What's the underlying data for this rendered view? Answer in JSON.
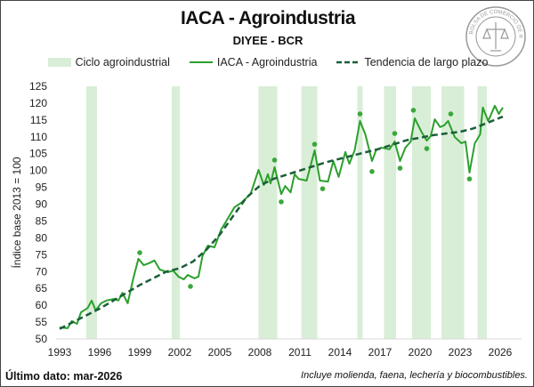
{
  "header": {
    "title": "IACA - Agroindustria",
    "subtitle": "DIYEE - BCR",
    "logo_text": "BOLSA DE COMERCIO DE ROSARIO"
  },
  "footer": {
    "last_data": "Último dato: mar-2026",
    "note": "Incluye molienda, faena, lechería y biocombustibles."
  },
  "colors": {
    "series": "#2ca02c",
    "trend": "#1a5e3a",
    "band": "#d9eed7",
    "dots": "#3aa83a"
  },
  "chart_data": {
    "type": "line",
    "title": "IACA - Agroindustria",
    "subtitle": "DIYEE - BCR",
    "xlabel": "",
    "ylabel": "Índice base 2013 = 100",
    "xlim": [
      1993,
      2027.5
    ],
    "ylim": [
      50,
      125
    ],
    "x_ticks": [
      "1993",
      "1996",
      "1999",
      "2002",
      "2005",
      "2008",
      "2011",
      "2014",
      "2017",
      "2020",
      "2023",
      "2026"
    ],
    "y_ticks": [
      "50",
      "55",
      "60",
      "65",
      "70",
      "75",
      "80",
      "85",
      "90",
      "95",
      "100",
      "105",
      "110",
      "115",
      "120",
      "125"
    ],
    "grid": false,
    "legend_position": "top",
    "legend": [
      "Ciclo agroindustrial",
      "IACA - Agroindustria",
      "Tendencia de largo plazo"
    ],
    "bands": [
      [
        1995.0,
        1995.8
      ],
      [
        2001.4,
        2002.0
      ],
      [
        2007.9,
        2009.3
      ],
      [
        2011.1,
        2012.3
      ],
      [
        2015.3,
        2015.7
      ],
      [
        2017.3,
        2018.2
      ],
      [
        2019.4,
        2020.8
      ],
      [
        2021.6,
        2023.3
      ],
      [
        2024.3,
        2025.0
      ]
    ],
    "series": [
      {
        "name": "IACA - Agroindustria",
        "x": [
          1993,
          1993.6,
          1993.9,
          1994.3,
          1994.6,
          1995.1,
          1995.4,
          1995.7,
          1996.1,
          1996.5,
          1997.1,
          1997.4,
          1997.7,
          1998.1,
          1998.5,
          1998.9,
          1999.3,
          1999.7,
          2000.1,
          2000.5,
          2001.1,
          2001.5,
          2001.9,
          2002.3,
          2002.6,
          2003.1,
          2003.4,
          2003.7,
          2004.1,
          2004.6,
          2005.1,
          2005.5,
          2006.1,
          2006.6,
          2007.3,
          2007.9,
          2008.3,
          2008.6,
          2008.8,
          2009.1,
          2009.6,
          2009.9,
          2010.3,
          2010.6,
          2010.9,
          2011.5,
          2012.1,
          2012.5,
          2013.1,
          2013.5,
          2013.9,
          2014.4,
          2014.7,
          2015.1,
          2015.5,
          2015.9,
          2016.4,
          2016.7,
          2017.1,
          2017.7,
          2018.1,
          2018.5,
          2018.9,
          2019.3,
          2019.6,
          2020.1,
          2020.5,
          2020.8,
          2021.1,
          2021.5,
          2021.8,
          2022.1,
          2022.6,
          2023.1,
          2023.4,
          2023.7,
          2024.1,
          2024.5,
          2024.7,
          2025.1,
          2025.6,
          2025.9,
          2026.2
        ],
        "y": [
          53.4,
          53.2,
          55.3,
          54.5,
          57.9,
          59.2,
          61.4,
          58.5,
          60.6,
          61.4,
          61.9,
          61.4,
          63.7,
          60.6,
          67.7,
          73.8,
          71.9,
          72.5,
          73.3,
          70.6,
          69.8,
          70.3,
          68.5,
          67.7,
          69.0,
          68.0,
          68.5,
          74.6,
          77.7,
          77.2,
          82.5,
          85.1,
          89.1,
          90.4,
          93.0,
          100.2,
          95.7,
          98.9,
          96.2,
          101.0,
          93.0,
          95.4,
          93.5,
          98.9,
          97.5,
          97.0,
          106.0,
          97.0,
          96.7,
          102.8,
          98.1,
          105.5,
          102.0,
          106.0,
          114.7,
          110.7,
          102.8,
          106.0,
          106.8,
          106.3,
          108.6,
          102.8,
          106.8,
          108.6,
          115.5,
          111.5,
          108.9,
          110.2,
          115.2,
          112.9,
          113.4,
          114.7,
          109.9,
          108.1,
          108.6,
          99.4,
          108.1,
          110.7,
          118.7,
          114.7,
          119.2,
          116.8,
          118.7
        ]
      },
      {
        "name": "Tendencia de largo plazo",
        "x": [
          1993,
          1996,
          1999,
          2001,
          2002,
          2003,
          2004,
          2005,
          2006,
          2007,
          2008,
          2009,
          2011,
          2013,
          2015,
          2017,
          2019,
          2021,
          2023,
          2024,
          2026.2
        ],
        "y": [
          53,
          59,
          66,
          70,
          71,
          73,
          76.5,
          81,
          86.5,
          92,
          95.5,
          97.5,
          100,
          102.5,
          104.5,
          106.5,
          109,
          110.5,
          111.5,
          112.5,
          116
        ]
      }
    ],
    "turning_points": {
      "x": [
        1999.0,
        2002.8,
        2009.1,
        2009.6,
        2012.1,
        2012.7,
        2015.5,
        2016.4,
        2018.1,
        2018.5,
        2019.5,
        2020.5,
        2022.3,
        2023.7
      ],
      "y": [
        75.6,
        65.6,
        103.1,
        90.7,
        107.8,
        94.6,
        116.8,
        99.7,
        111.0,
        100.7,
        117.9,
        106.5,
        116.8,
        97.5
      ]
    }
  }
}
